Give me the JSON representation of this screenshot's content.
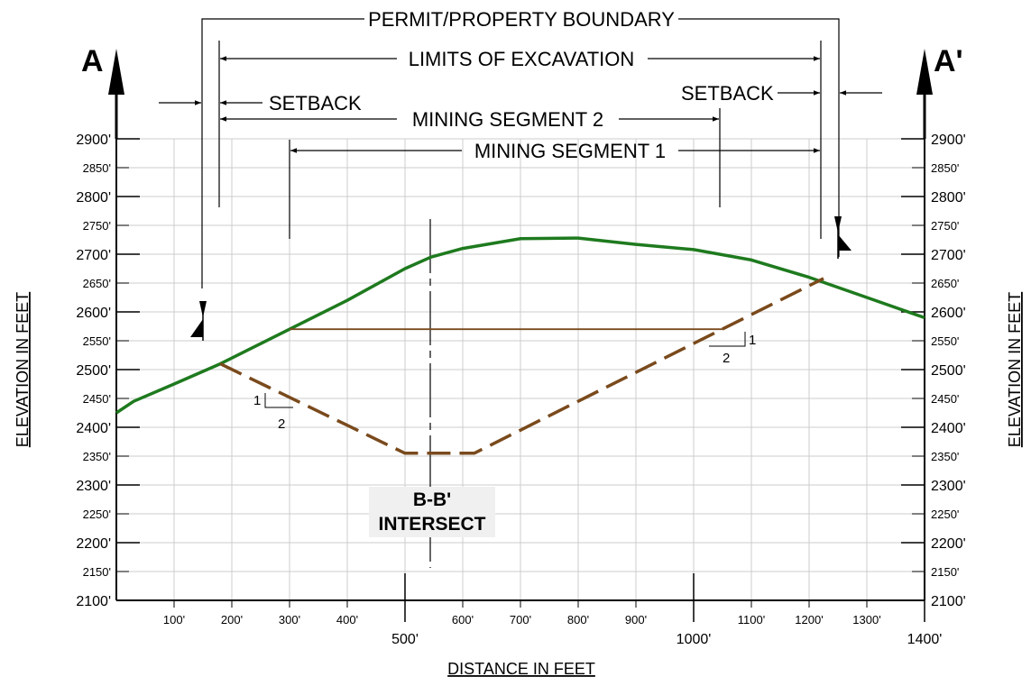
{
  "drawing": {
    "section_left": "A",
    "section_right": "A'",
    "labels": {
      "permit_boundary": "PERMIT/PROPERTY BOUNDARY",
      "limits_excavation": "LIMITS OF EXCAVATION",
      "setback_left": "SETBACK",
      "setback_right": "SETBACK",
      "mining_segment_2": "MINING SEGMENT 2",
      "mining_segment_1": "MINING SEGMENT 1"
    },
    "intersect": {
      "line1": "B-B'",
      "line2": "INTERSECT"
    },
    "slope_left": {
      "rise": "1",
      "run": "2"
    },
    "slope_right": {
      "rise": "1",
      "run": "2"
    },
    "y_axis_title": "ELEVATION IN FEET",
    "x_axis_title": "DISTANCE IN FEET",
    "colors": {
      "ground": "#1e7a1e",
      "excavation": "#7a4a1c",
      "grid": "#cccccc"
    }
  },
  "chart_data": {
    "type": "line",
    "title": "",
    "xlabel": "DISTANCE IN FEET",
    "ylabel": "ELEVATION IN FEET",
    "xlim": [
      0,
      1400
    ],
    "ylim": [
      2100,
      2900
    ],
    "x_ticks_minor": [
      "100'",
      "200'",
      "300'",
      "400'",
      "600'",
      "700'",
      "800'",
      "900'",
      "1100'",
      "1200'",
      "1300'"
    ],
    "x_ticks_major": [
      "500'",
      "1000'",
      "1400'"
    ],
    "y_ticks_major": [
      "2900'",
      "2800'",
      "2700'",
      "2600'",
      "2500'",
      "2400'",
      "2300'",
      "2200'",
      "2100'"
    ],
    "y_ticks_minor": [
      "2850'",
      "2750'",
      "2650'",
      "2550'",
      "2450'",
      "2350'",
      "2250'",
      "2150'"
    ],
    "series": [
      {
        "style": "solid",
        "x": [
          0,
          30,
          100,
          180,
          230,
          300,
          400,
          500,
          545,
          600,
          700,
          800,
          900,
          1000,
          1100,
          1200,
          1300,
          1400
        ],
        "y": [
          2425,
          2445,
          2475,
          2510,
          2535,
          2570,
          2620,
          2675,
          2695,
          2710,
          2727,
          2728,
          2717,
          2708,
          2690,
          2660,
          2625,
          2590
        ]
      },
      {
        "style": "dashed",
        "x": [
          180,
          500,
          620,
          1225
        ],
        "y": [
          2510,
          2355,
          2355,
          2658
        ]
      },
      {
        "style": "solid-thin",
        "x": [
          300,
          1050
        ],
        "y": [
          2570,
          2570
        ]
      }
    ]
  }
}
